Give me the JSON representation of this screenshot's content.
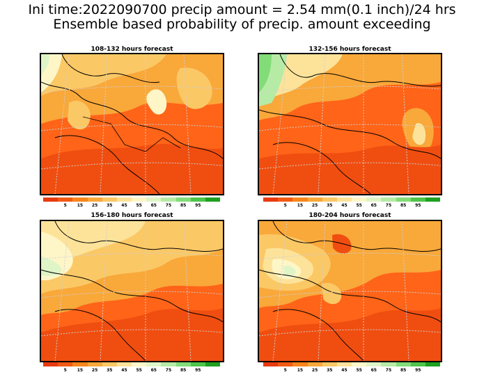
{
  "title": {
    "line1": "Ini time:2022090700 precip amount = 2.54 mm(0.1 inch)/24 hrs",
    "line2": "Ensemble based probability of precip. amount exceeding"
  },
  "panels": [
    {
      "title": "108-132 hours forecast"
    },
    {
      "title": "132-156 hours forecast"
    },
    {
      "title": "156-180 hours forecast"
    },
    {
      "title": "180-204 hours forecast"
    }
  ],
  "legend": {
    "colors": [
      "#e83a10",
      "#f25a14",
      "#f8861c",
      "#f9a83a",
      "#fbc866",
      "#fde39a",
      "#fff6c8",
      "#dff5c8",
      "#b6eba5",
      "#82dc78",
      "#4ec44a",
      "#1ea020"
    ],
    "tick_labels": [
      "",
      "5",
      "15",
      "25",
      "35",
      "45",
      "55",
      "65",
      "75",
      "85",
      "95",
      ""
    ]
  },
  "colors": {
    "background": "#ffffff",
    "prob_high": "#ff5a12",
    "prob_mid": "#f9a83a",
    "prob_low": "#fde39a",
    "prob_very_low": "#b6eba5"
  }
}
